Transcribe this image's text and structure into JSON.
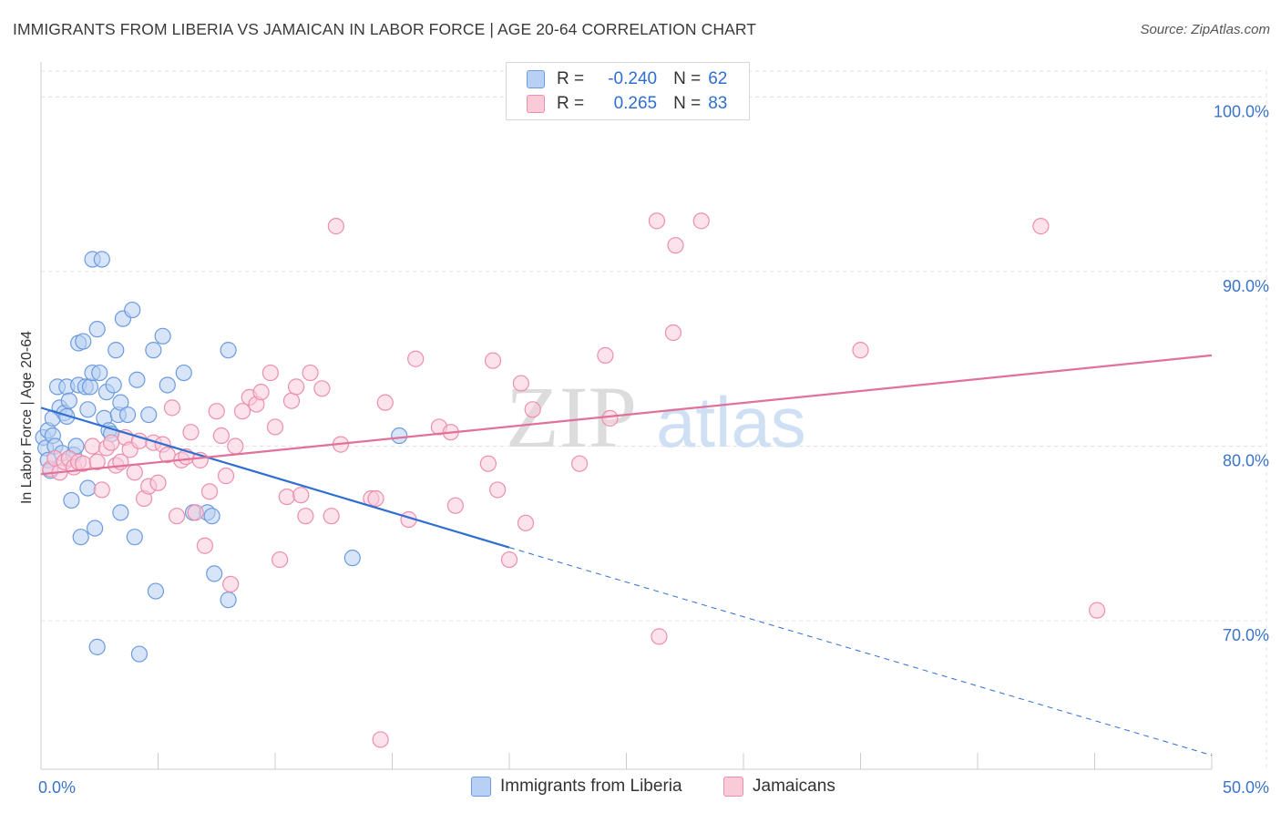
{
  "header": {
    "title": "IMMIGRANTS FROM LIBERIA VS JAMAICAN IN LABOR FORCE | AGE 20-64 CORRELATION CHART",
    "source": "Source: ZipAtlas.com"
  },
  "watermark": {
    "zip": "ZIP",
    "atlas": "atlas"
  },
  "legend": {
    "r_label": "R =",
    "n_label": "N =",
    "rows": [
      {
        "r": "-0.240",
        "n": "62"
      },
      {
        "r": "0.265",
        "n": "83"
      }
    ]
  },
  "colors": {
    "blue_fill": "#b8d0f3",
    "blue_stroke": "#6c9be0",
    "blue_line": "#2f6fd0",
    "pink_fill": "#f9cad8",
    "pink_stroke": "#ec8fac",
    "pink_line": "#e0719a",
    "tick_label": "#3b74c9",
    "grid": "#e3e3e3"
  },
  "chart_data": {
    "type": "scatter",
    "ylabel": "In Labor Force | Age 20-64",
    "xlim": [
      0,
      50
    ],
    "ylim": [
      61.5,
      102
    ],
    "x_tick_labels": [
      {
        "value": 0,
        "label": "0.0%"
      },
      {
        "value": 50,
        "label": "50.0%"
      }
    ],
    "y_tick_labels": [
      {
        "value": 70,
        "label": "70.0%"
      },
      {
        "value": 80,
        "label": "80.0%"
      },
      {
        "value": 90,
        "label": "90.0%"
      },
      {
        "value": 100,
        "label": "100.0%"
      }
    ],
    "grid": true,
    "legend_position": "top-center",
    "series": [
      {
        "name": "Immigrants from Liberia",
        "r": -0.24,
        "n": 62,
        "trend": {
          "x0": 0,
          "y0": 82.2,
          "x1": 20,
          "y1": 74.2,
          "dash_to_x": 50,
          "dash_to_y": 62.3
        },
        "points": [
          [
            0.1,
            80.5
          ],
          [
            0.2,
            79.9
          ],
          [
            0.3,
            79.2
          ],
          [
            0.3,
            80.9
          ],
          [
            0.4,
            78.6
          ],
          [
            0.5,
            80.6
          ],
          [
            0.5,
            81.6
          ],
          [
            0.6,
            80.0
          ],
          [
            0.7,
            83.4
          ],
          [
            0.8,
            82.2
          ],
          [
            0.9,
            79.6
          ],
          [
            1.0,
            81.9
          ],
          [
            1.1,
            81.7
          ],
          [
            1.1,
            83.4
          ],
          [
            1.2,
            82.6
          ],
          [
            1.3,
            76.9
          ],
          [
            1.4,
            79.5
          ],
          [
            1.5,
            80.0
          ],
          [
            1.6,
            83.5
          ],
          [
            1.6,
            85.9
          ],
          [
            1.7,
            74.8
          ],
          [
            1.8,
            86.0
          ],
          [
            1.9,
            83.4
          ],
          [
            2.0,
            82.1
          ],
          [
            2.0,
            77.6
          ],
          [
            2.1,
            83.4
          ],
          [
            2.2,
            84.2
          ],
          [
            2.3,
            75.3
          ],
          [
            2.4,
            86.7
          ],
          [
            2.5,
            84.2
          ],
          [
            2.7,
            81.6
          ],
          [
            2.8,
            83.1
          ],
          [
            2.9,
            80.9
          ],
          [
            3.0,
            80.7
          ],
          [
            3.1,
            83.5
          ],
          [
            3.2,
            85.5
          ],
          [
            3.3,
            81.8
          ],
          [
            3.4,
            82.5
          ],
          [
            3.4,
            76.2
          ],
          [
            3.5,
            87.3
          ],
          [
            3.7,
            81.8
          ],
          [
            3.9,
            87.8
          ],
          [
            4.0,
            74.8
          ],
          [
            4.1,
            83.8
          ],
          [
            4.2,
            68.1
          ],
          [
            4.6,
            81.8
          ],
          [
            4.8,
            85.5
          ],
          [
            4.9,
            71.7
          ],
          [
            5.2,
            86.3
          ],
          [
            5.4,
            83.5
          ],
          [
            6.1,
            84.2
          ],
          [
            6.5,
            76.2
          ],
          [
            7.1,
            76.2
          ],
          [
            7.3,
            76.0
          ],
          [
            7.4,
            72.7
          ],
          [
            8.0,
            71.2
          ],
          [
            8.0,
            85.5
          ],
          [
            13.3,
            73.6
          ],
          [
            15.3,
            80.6
          ],
          [
            2.2,
            90.7
          ],
          [
            2.6,
            90.7
          ],
          [
            2.4,
            68.5
          ]
        ]
      },
      {
        "name": "Jamaicans",
        "r": 0.265,
        "n": 83,
        "trend": {
          "x0": 0,
          "y0": 78.4,
          "x1": 50,
          "y1": 85.2
        },
        "points": [
          [
            0.4,
            78.7
          ],
          [
            0.6,
            79.3
          ],
          [
            0.8,
            78.5
          ],
          [
            1.0,
            79.1
          ],
          [
            1.2,
            79.3
          ],
          [
            1.4,
            78.8
          ],
          [
            1.6,
            79.1
          ],
          [
            1.8,
            79.0
          ],
          [
            2.2,
            80.0
          ],
          [
            2.4,
            79.1
          ],
          [
            2.6,
            77.5
          ],
          [
            2.8,
            79.9
          ],
          [
            3.0,
            80.2
          ],
          [
            3.2,
            78.9
          ],
          [
            3.4,
            79.1
          ],
          [
            3.6,
            80.5
          ],
          [
            3.8,
            79.8
          ],
          [
            4.0,
            78.5
          ],
          [
            4.2,
            80.3
          ],
          [
            4.4,
            77.0
          ],
          [
            4.6,
            77.7
          ],
          [
            4.8,
            80.2
          ],
          [
            5.0,
            77.9
          ],
          [
            5.2,
            80.1
          ],
          [
            5.4,
            79.5
          ],
          [
            5.6,
            82.2
          ],
          [
            5.8,
            76.0
          ],
          [
            6.0,
            79.2
          ],
          [
            6.2,
            79.4
          ],
          [
            6.4,
            80.8
          ],
          [
            6.6,
            76.2
          ],
          [
            6.8,
            79.2
          ],
          [
            7.0,
            74.3
          ],
          [
            7.2,
            77.4
          ],
          [
            7.5,
            82.0
          ],
          [
            7.7,
            80.6
          ],
          [
            7.9,
            78.3
          ],
          [
            8.1,
            72.1
          ],
          [
            8.3,
            80.0
          ],
          [
            8.6,
            82.0
          ],
          [
            8.9,
            82.8
          ],
          [
            9.2,
            82.4
          ],
          [
            9.4,
            83.1
          ],
          [
            9.8,
            84.2
          ],
          [
            10.0,
            81.1
          ],
          [
            10.2,
            73.5
          ],
          [
            10.5,
            77.1
          ],
          [
            10.7,
            82.6
          ],
          [
            10.9,
            83.4
          ],
          [
            11.1,
            77.2
          ],
          [
            11.3,
            76.0
          ],
          [
            11.5,
            84.2
          ],
          [
            12.0,
            83.3
          ],
          [
            12.4,
            76.0
          ],
          [
            12.6,
            92.6
          ],
          [
            12.8,
            80.1
          ],
          [
            14.1,
            77.0
          ],
          [
            14.3,
            77.0
          ],
          [
            14.7,
            82.5
          ],
          [
            15.7,
            75.8
          ],
          [
            16.0,
            85.0
          ],
          [
            17.0,
            81.1
          ],
          [
            17.5,
            80.8
          ],
          [
            17.7,
            76.6
          ],
          [
            19.1,
            79.0
          ],
          [
            19.3,
            84.9
          ],
          [
            19.5,
            77.5
          ],
          [
            20.0,
            73.5
          ],
          [
            20.5,
            83.6
          ],
          [
            20.7,
            75.6
          ],
          [
            21.0,
            82.1
          ],
          [
            23.0,
            79.0
          ],
          [
            24.1,
            85.2
          ],
          [
            24.3,
            81.6
          ],
          [
            26.3,
            92.9
          ],
          [
            26.4,
            69.1
          ],
          [
            27.0,
            86.5
          ],
          [
            27.1,
            91.5
          ],
          [
            28.2,
            92.9
          ],
          [
            35.0,
            85.5
          ],
          [
            42.7,
            92.6
          ],
          [
            45.1,
            70.6
          ],
          [
            14.5,
            63.2
          ]
        ]
      }
    ]
  },
  "bottom_legend": {
    "items": [
      {
        "label": "Immigrants from Liberia"
      },
      {
        "label": "Jamaicans"
      }
    ]
  }
}
